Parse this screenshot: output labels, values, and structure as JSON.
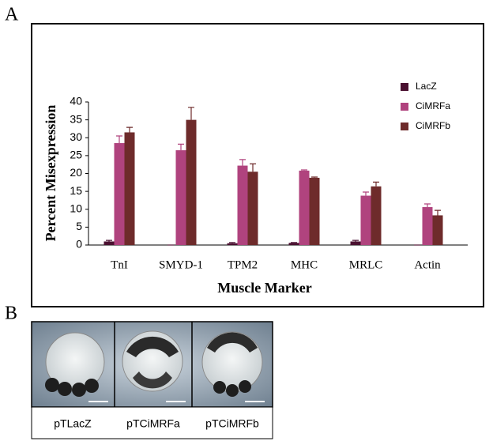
{
  "panel_labels": [
    "A",
    "B"
  ],
  "chart_data": {
    "type": "bar",
    "x_label": "Muscle Marker",
    "y_label": "Percent Misexpression",
    "categories": [
      "TnI",
      "SMYD-1",
      "TPM2",
      "MHC",
      "MRLC",
      "Actin"
    ],
    "series": [
      {
        "name": "LacZ",
        "color": "#4a1030",
        "values": [
          1,
          0,
          0.5,
          0.6,
          1,
          0
        ],
        "errors": [
          0.3,
          0,
          0.2,
          0.1,
          0.3,
          0
        ]
      },
      {
        "name": "CiMRFa",
        "color": "#b0437e",
        "values": [
          28.5,
          26.5,
          22.2,
          20.8,
          13.8,
          10.6
        ],
        "errors": [
          2,
          1.7,
          1.7,
          0.2,
          1,
          0.9
        ]
      },
      {
        "name": "CiMRFb",
        "color": "#6e2b2b",
        "values": [
          31.5,
          35,
          20.5,
          18.8,
          16.4,
          8.3
        ],
        "errors": [
          1.4,
          3.5,
          2.2,
          0.2,
          1.2,
          1.4
        ]
      }
    ],
    "ylim": [
      0,
      40
    ],
    "yticks": [
      0,
      5,
      10,
      15,
      20,
      25,
      30,
      35,
      40
    ],
    "grid": false,
    "legend": "right"
  },
  "panel_b": {
    "labels": [
      "pTLacZ",
      "pTCiMRFa",
      "pTCiMRFb"
    ]
  }
}
